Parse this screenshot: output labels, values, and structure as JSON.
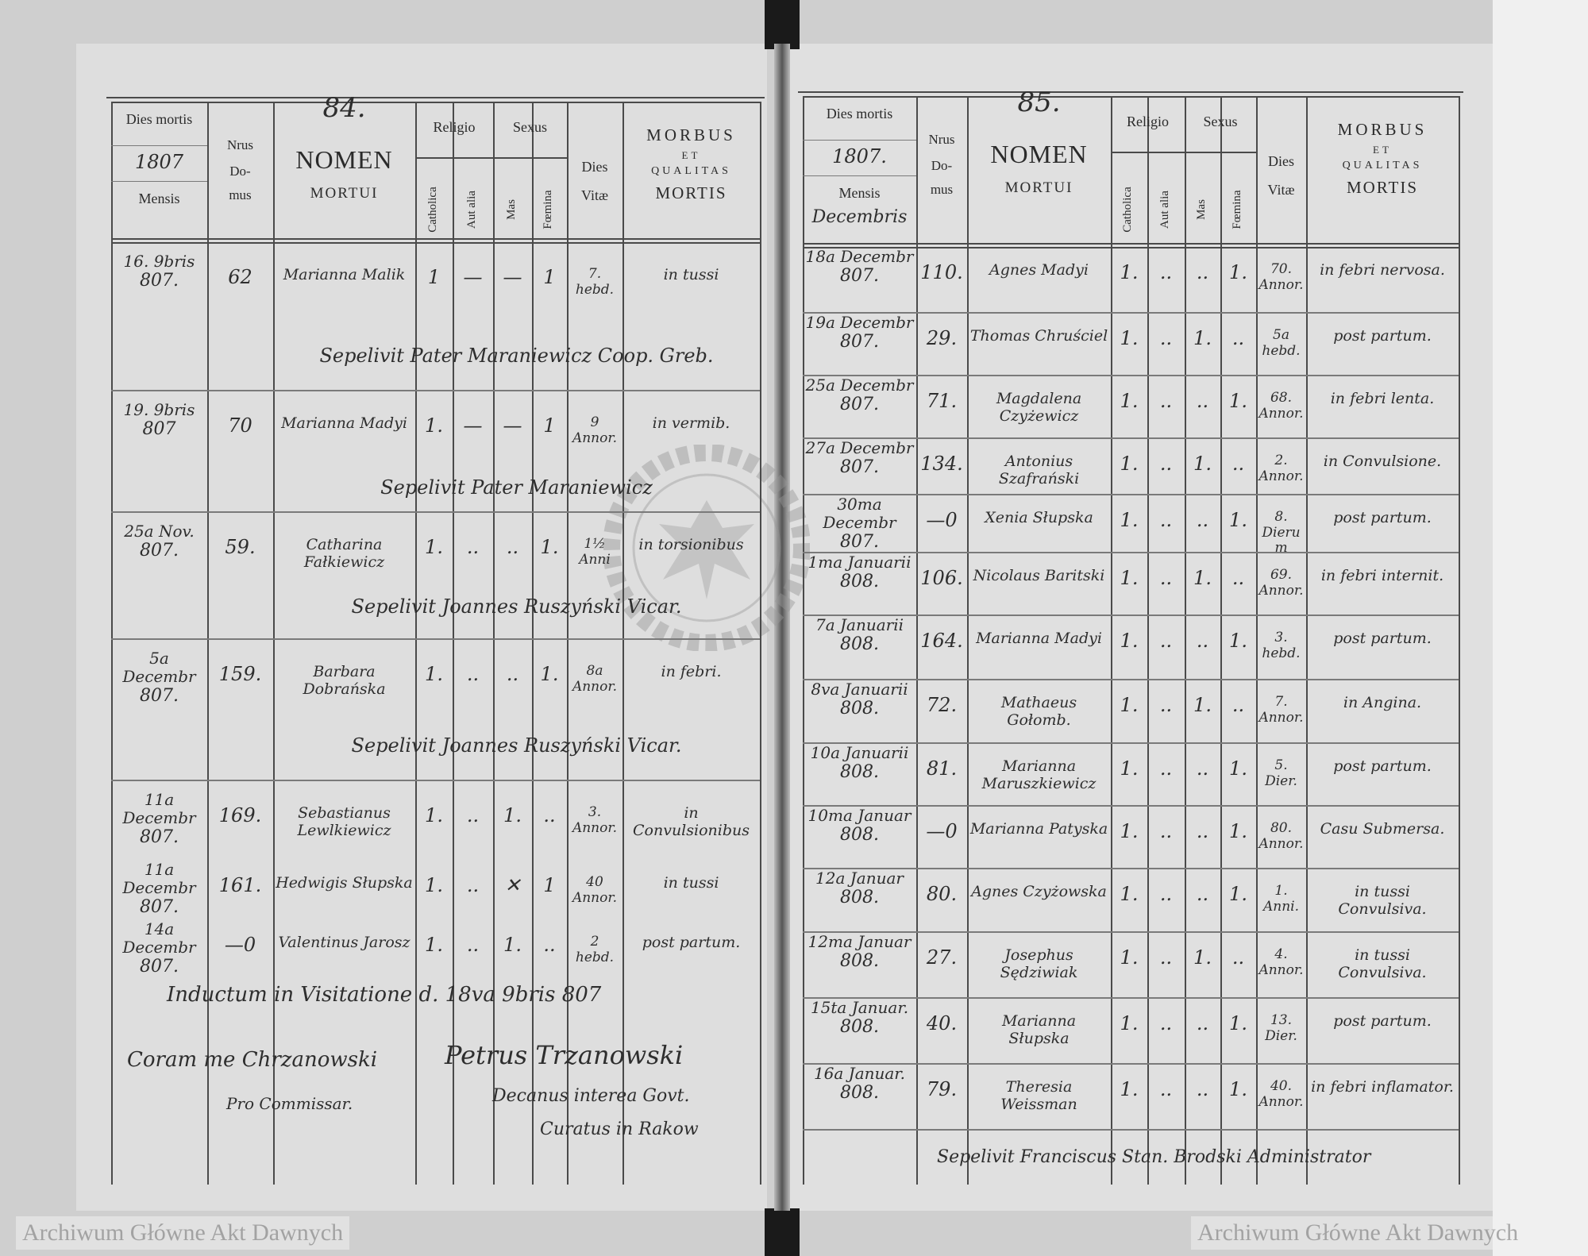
{
  "watermark": "Archiwum Główne Akt Dawnych",
  "stamp": {
    "top": "ARCHIWUM GŁÓWNE",
    "bottom": "AKT DAWNYCH"
  },
  "header": {
    "dies_mortis": "Dies mortis",
    "mensis": "Mensis",
    "nrus": "Nrus",
    "do": "Do-",
    "mus": "mus",
    "nomen": "NOMEN",
    "mortui": "MORTUI",
    "religio": "Religio",
    "sexus": "Sexus",
    "catholica": "Catholica",
    "aut_alia": "Aut alia",
    "mas": "Mas",
    "foemina": "Fœmina",
    "dies": "Dies",
    "vitae": "Vitæ",
    "morbus": "MORBUS",
    "et": "ET",
    "qualitas": "QUALITAS",
    "mortis": "MORTIS"
  },
  "left_page": {
    "page_number": "84.",
    "year": "1807",
    "month": "",
    "rows": [
      {
        "date_day": "16. 9bris",
        "date_year": "807.",
        "domus": "62",
        "name": "Marianna Malik",
        "catholica": "1",
        "aut_alia": "—",
        "mas": "—",
        "foemina": "1",
        "dies_vitae": "7. hebd.",
        "morbus": "in tussi",
        "note": "Sepelivit Pater Maraniewicz Coop. Greb."
      },
      {
        "date_day": "19. 9bris",
        "date_year": "807",
        "domus": "70",
        "name": "Marianna Madyi",
        "catholica": "1.",
        "aut_alia": "—",
        "mas": "—",
        "foemina": "1",
        "dies_vitae": "9 Annor.",
        "morbus": "in vermib.",
        "note": "Sepelivit Pater Maraniewicz"
      },
      {
        "date_day": "25a Nov.",
        "date_year": "807.",
        "domus": "59.",
        "name": "Catharina Fałkiewicz",
        "catholica": "1.",
        "aut_alia": "..",
        "mas": "..",
        "foemina": "1.",
        "dies_vitae": "1½ Anni",
        "morbus": "in torsionibus",
        "note": "Sepelivit Joannes Ruszyński Vicar."
      },
      {
        "date_day": "5a Decembr",
        "date_year": "807.",
        "domus": "159.",
        "name": "Barbara Dobrańska",
        "catholica": "1.",
        "aut_alia": "..",
        "mas": "..",
        "foemina": "1.",
        "dies_vitae": "8a Annor.",
        "morbus": "in febri.",
        "note": "Sepelivit Joannes Ruszyński Vicar."
      },
      {
        "date_day": "11a Decembr",
        "date_year": "807.",
        "domus": "169.",
        "name": "Sebastianus Lewlkiewicz",
        "catholica": "1.",
        "aut_alia": "..",
        "mas": "1.",
        "foemina": "..",
        "dies_vitae": "3. Annor.",
        "morbus": "in Convulsionibus",
        "note": ""
      },
      {
        "date_day": "11a Decembr",
        "date_year": "807.",
        "domus": "161.",
        "name": "Hedwigis Słupska",
        "catholica": "1.",
        "aut_alia": "..",
        "mas": "✕",
        "foemina": "1",
        "dies_vitae": "40 Annor.",
        "morbus": "in tussi",
        "note": ""
      },
      {
        "date_day": "14a Decembr",
        "date_year": "807.",
        "domus": "—0",
        "name": "Valentinus Jarosz",
        "catholica": "1.",
        "aut_alia": "..",
        "mas": "1.",
        "foemina": "..",
        "dies_vitae": "2 hebd.",
        "morbus": "post partum.",
        "note": ""
      }
    ],
    "footer": {
      "visitation": "Inductum in Visitatione d. 18va 9bris 807",
      "coram": "Coram me Chrzanowski",
      "commissar": "Pro Commissar.",
      "signature": "Petrus Trzanowski",
      "decanus": "Decanus interea Govt.",
      "curatus": "Curatus in Rakow"
    }
  },
  "right_page": {
    "page_number": "85.",
    "year": "1807.",
    "month": "Decembris",
    "rows": [
      {
        "date_day": "18a Decembr",
        "date_year": "807.",
        "domus": "110.",
        "name": "Agnes Madyi",
        "catholica": "1.",
        "aut_alia": "..",
        "mas": "..",
        "foemina": "1.",
        "dies_vitae": "70. Annor.",
        "morbus": "in febri nervosa."
      },
      {
        "date_day": "19a Decembr",
        "date_year": "807.",
        "domus": "29.",
        "name": "Thomas Chruściel",
        "catholica": "1.",
        "aut_alia": "..",
        "mas": "1.",
        "foemina": "..",
        "dies_vitae": "5a hebd.",
        "morbus": "post partum."
      },
      {
        "date_day": "25a Decembr",
        "date_year": "807.",
        "domus": "71.",
        "name": "Magdalena Czyżewicz",
        "catholica": "1.",
        "aut_alia": "..",
        "mas": "..",
        "foemina": "1.",
        "dies_vitae": "68. Annor.",
        "morbus": "in febri lenta."
      },
      {
        "date_day": "27a Decembr",
        "date_year": "807.",
        "domus": "134.",
        "name": "Antonius Szafrański",
        "catholica": "1.",
        "aut_alia": "..",
        "mas": "1.",
        "foemina": "..",
        "dies_vitae": "2. Annor.",
        "morbus": "in Convulsione."
      },
      {
        "date_day": "30ma Decembr",
        "date_year": "807.",
        "domus": "—0",
        "name": "Xenia Słupska",
        "catholica": "1.",
        "aut_alia": "..",
        "mas": "..",
        "foemina": "1.",
        "dies_vitae": "8. Dierum",
        "morbus": "post partum."
      },
      {
        "date_day": "1ma Januarii",
        "date_year": "808.",
        "domus": "106.",
        "name": "Nicolaus Baritski",
        "catholica": "1.",
        "aut_alia": "..",
        "mas": "1.",
        "foemina": "..",
        "dies_vitae": "69. Annor.",
        "morbus": "in febri internit."
      },
      {
        "date_day": "7a Januarii",
        "date_year": "808.",
        "domus": "164.",
        "name": "Marianna Madyi",
        "catholica": "1.",
        "aut_alia": "..",
        "mas": "..",
        "foemina": "1.",
        "dies_vitae": "3. hebd.",
        "morbus": "post partum."
      },
      {
        "date_day": "8va Januarii",
        "date_year": "808.",
        "domus": "72.",
        "name": "Mathaeus Gołomb.",
        "catholica": "1.",
        "aut_alia": "..",
        "mas": "1.",
        "foemina": "..",
        "dies_vitae": "7. Annor.",
        "morbus": "in Angina."
      },
      {
        "date_day": "10a Januarii",
        "date_year": "808.",
        "domus": "81.",
        "name": "Marianna Maruszkiewicz",
        "catholica": "1.",
        "aut_alia": "..",
        "mas": "..",
        "foemina": "1.",
        "dies_vitae": "5. Dier.",
        "morbus": "post partum."
      },
      {
        "date_day": "10ma Januar",
        "date_year": "808.",
        "domus": "—0",
        "name": "Marianna Patyska",
        "catholica": "1.",
        "aut_alia": "..",
        "mas": "..",
        "foemina": "1.",
        "dies_vitae": "80. Annor.",
        "morbus": "Casu Submersa."
      },
      {
        "date_day": "12a Januar",
        "date_year": "808.",
        "domus": "80.",
        "name": "Agnes Czyżowska",
        "catholica": "1.",
        "aut_alia": "..",
        "mas": "..",
        "foemina": "1.",
        "dies_vitae": "1. Anni.",
        "morbus": "in tussi Convulsiva."
      },
      {
        "date_day": "12ma Januar",
        "date_year": "808.",
        "domus": "27.",
        "name": "Josephus Sędziwiak",
        "catholica": "1.",
        "aut_alia": "..",
        "mas": "1.",
        "foemina": "..",
        "dies_vitae": "4. Annor.",
        "morbus": "in tussi Convulsiva."
      },
      {
        "date_day": "15ta Januar.",
        "date_year": "808.",
        "domus": "40.",
        "name": "Marianna Słupska",
        "catholica": "1.",
        "aut_alia": "..",
        "mas": "..",
        "foemina": "1.",
        "dies_vitae": "13. Dier.",
        "morbus": "post partum."
      },
      {
        "date_day": "16a Januar.",
        "date_year": "808.",
        "domus": "79.",
        "name": "Theresia Weissman",
        "catholica": "1.",
        "aut_alia": "..",
        "mas": "..",
        "foemina": "1.",
        "dies_vitae": "40. Annor.",
        "morbus": "in febri inflamator."
      }
    ],
    "footer": {
      "note": "Sepelivit Franciscus Stan. Brodski Administrator"
    }
  }
}
